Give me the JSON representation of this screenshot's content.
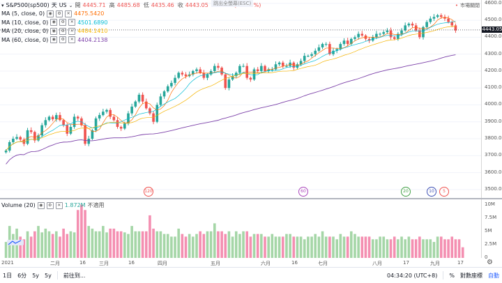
{
  "symbol": {
    "name": "S&P500(sp500)",
    "interval": "天",
    "exchange": "US"
  },
  "ohlc": {
    "open_label": "開",
    "open": "4445.71",
    "high_label": "高",
    "high": "4485.68",
    "low_label": "低",
    "low": "4435.46",
    "close_label": "收",
    "close": "4443.05",
    "change": "−25.60 (−0.57%)"
  },
  "tooltip": "跳出全螢幕(ESC)",
  "market_status": "市場關閉",
  "indicators": [
    {
      "label": "MA (5, close, 0)",
      "value": "4475.5420",
      "color": "#ff6d00"
    },
    {
      "label": "MA (10, close, 0)",
      "value": "4501.6890",
      "color": "#00bcd4"
    },
    {
      "label": "MA (20, close, 0)",
      "value": "4484.1410",
      "color": "#f5b400"
    },
    {
      "label": "MA (60, close, 0)",
      "value": "4404.2138",
      "color": "#7b3fa8"
    }
  ],
  "volume": {
    "label": "Volume (20)",
    "value": "1.872M",
    "status": "不適用",
    "value_color": "#26a69a"
  },
  "price_axis": {
    "ticks": [
      "4600.00",
      "4500.00",
      "4400.00",
      "4300.00",
      "4200.00",
      "4100.00",
      "4000.00",
      "3900.00",
      "3800.00",
      "3700.00",
      "3600.00",
      "3500.00"
    ],
    "current": "4443.05",
    "tick_values": [
      4600,
      4500,
      4400,
      4300,
      4200,
      4100,
      4000,
      3900,
      3800,
      3700,
      3600,
      3500
    ]
  },
  "volume_axis": {
    "ticks": [
      "10M",
      "7.5M",
      "5M",
      "2.5M",
      "0"
    ]
  },
  "time_axis": [
    "2021",
    "二月",
    "16",
    "三月",
    "16",
    "四月",
    "五月",
    "六月",
    "16",
    "七月",
    "八月",
    "17",
    "九月",
    "17"
  ],
  "events": [
    {
      "label": "120",
      "color": "#ef5350"
    },
    {
      "label": "60",
      "color": "#ab47bc"
    },
    {
      "label": "20",
      "color": "#43a047"
    },
    {
      "label": "10",
      "color": "#3f51b5"
    },
    {
      "label": "5",
      "color": "#ef5350"
    }
  ],
  "bottom_bar": {
    "ranges": [
      "1日",
      "6分",
      "5y",
      "5y"
    ],
    "goto": "前往到...",
    "time": "04:34:20 (UTC+8)",
    "percent": "%",
    "log": "對數座標",
    "auto": "自動"
  },
  "colors": {
    "up": "#26a69a",
    "down": "#ef5350",
    "up_vol": "#a5d6a7",
    "down_vol": "#f48fb1",
    "accent": "#2962ff"
  },
  "chart_data": {
    "type": "candlestick",
    "symbol": "S&P500",
    "ylim": [
      3450,
      4620
    ],
    "series_start": "2021-01",
    "close": [
      3730,
      3780,
      3800,
      3810,
      3795,
      3770,
      3850,
      3840,
      3790,
      3820,
      3880,
      3910,
      3930,
      3915,
      3940,
      3910,
      3880,
      3830,
      3870,
      3930,
      3920,
      3880,
      3770,
      3800,
      3850,
      3920,
      3940,
      3960,
      3970,
      3930,
      3910,
      3870,
      3860,
      3890,
      3950,
      3990,
      4020,
      4060,
      4020,
      3980,
      3950,
      3900,
      4000,
      4050,
      4080,
      4110,
      4130,
      4160,
      4190,
      4180,
      4170,
      4180,
      4200,
      4210,
      4190,
      4160,
      4180,
      4200,
      4230,
      4220,
      4180,
      4100,
      4150,
      4170,
      4190,
      4230,
      4230,
      4160,
      4150,
      4210,
      4200,
      4230,
      4200,
      4210,
      4210,
      4240,
      4250,
      4230,
      4230,
      4250,
      4220,
      4240,
      4260,
      4290,
      4290,
      4300,
      4320,
      4340,
      4360,
      4360,
      4300,
      4320,
      4330,
      4360,
      4380,
      4360,
      4390,
      4400,
      4420,
      4410,
      4390,
      4380,
      4400,
      4420,
      4420,
      4430,
      4440,
      4400,
      4390,
      4420,
      4440,
      4470,
      4480,
      4470,
      4440,
      4400,
      4460,
      4490,
      4510,
      4520,
      4530,
      4520,
      4510,
      4490,
      4470,
      4440
    ],
    "volume_millions": [
      3,
      6,
      4.5,
      5.5,
      4,
      3.5,
      5,
      4,
      5,
      6,
      4.8,
      5.5,
      5,
      4.5,
      5,
      4,
      5.5,
      4.5,
      5,
      4.8,
      9,
      10,
      9,
      6,
      5.5,
      5,
      5,
      6,
      4.8,
      5.5,
      5.5,
      5,
      5,
      4.8,
      4.5,
      6,
      5,
      5,
      5,
      5,
      8,
      5.5,
      5,
      5,
      4.5,
      4.5,
      4,
      4,
      5.5,
      4.5,
      4,
      4.5,
      4,
      4.5,
      5,
      4.5,
      5,
      5,
      6.5,
      5,
      5,
      4.5,
      5,
      4,
      5,
      4.5,
      5,
      5,
      4,
      4.5,
      4.5,
      4.5,
      4,
      4,
      4.5,
      4,
      4,
      4,
      4.5,
      4.5,
      4,
      4,
      4,
      3.5,
      4,
      4,
      4.5,
      4,
      5,
      4,
      4,
      4,
      3.5,
      4.5,
      4,
      4,
      5,
      4.5,
      4,
      4,
      4,
      4,
      3.5,
      3.5,
      4,
      4,
      3.5,
      3.5,
      4,
      3.5,
      4,
      3.5,
      4,
      3.5,
      3.5,
      4,
      3.5,
      3.5,
      3.5,
      3,
      4,
      4,
      3.5,
      3.5,
      4,
      3.5,
      3.5,
      2
    ]
  }
}
